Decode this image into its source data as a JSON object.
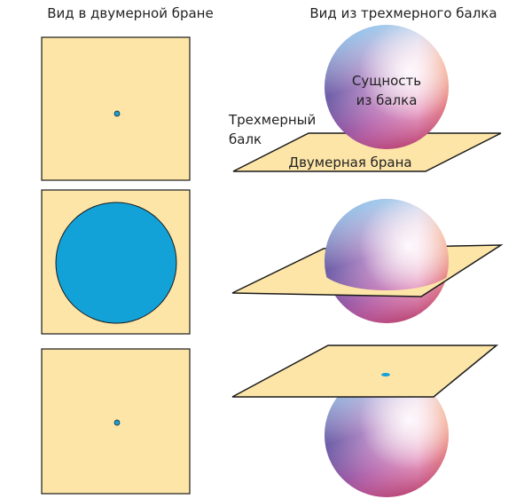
{
  "titles": {
    "left": "Вид в двумерной бране",
    "right": "Вид из трехмерного балка"
  },
  "labels": {
    "entity_line1": "Сущность",
    "entity_line2": "из балка",
    "bulk_line1": "Трехмерный",
    "bulk_line2": "балк",
    "brane": "Двумерная брана"
  },
  "colors": {
    "brane_fill": "#fde5a8",
    "cross_section": "#12a2d8",
    "outline": "#1a1a1a"
  }
}
